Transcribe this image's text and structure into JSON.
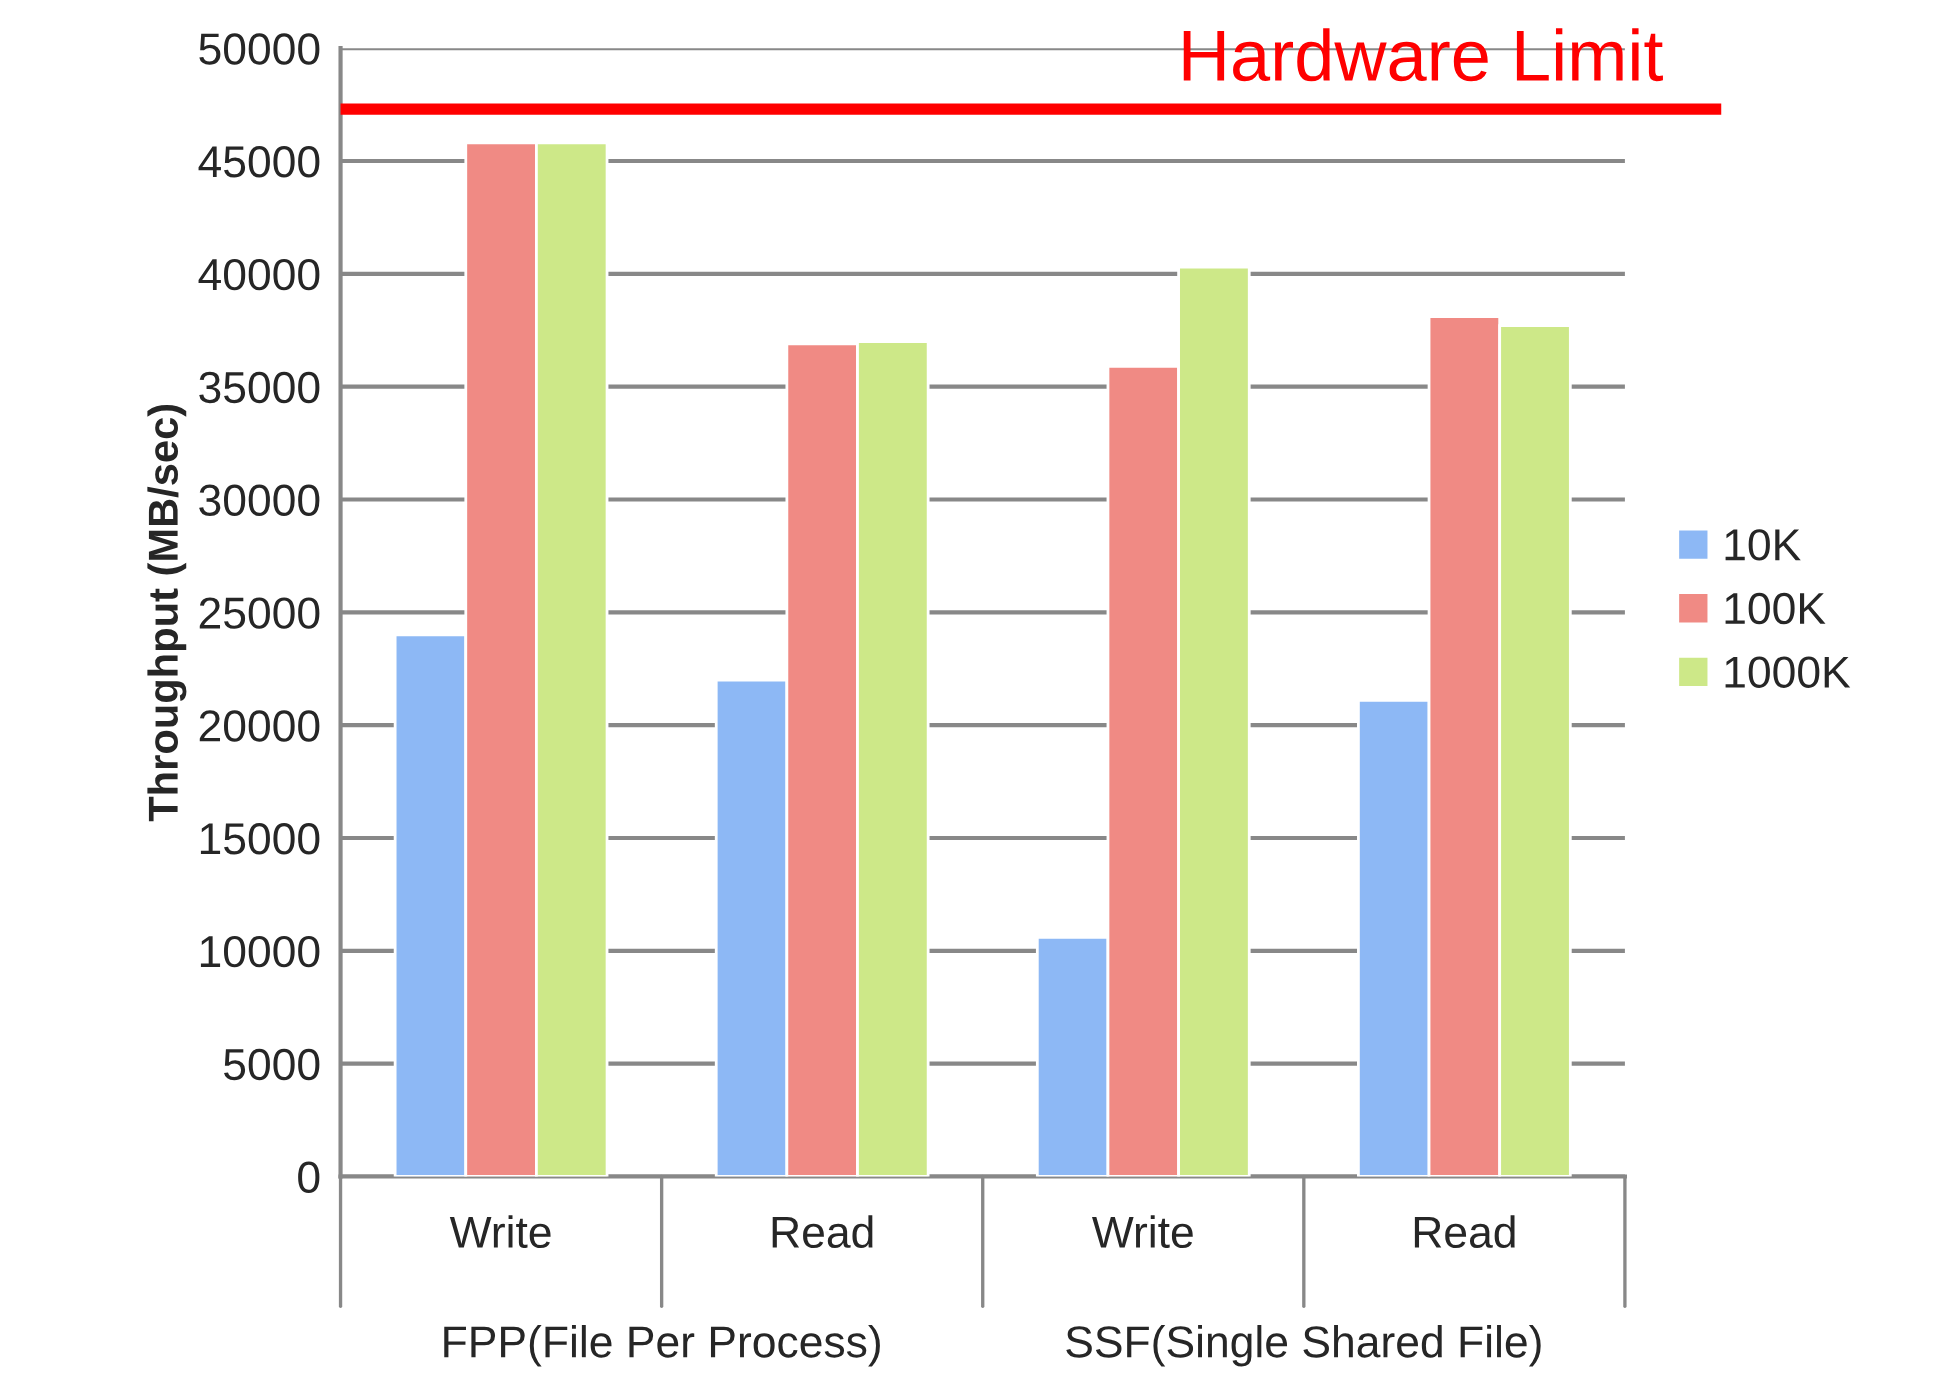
{
  "chart_data": {
    "type": "bar",
    "ylabel": "Throughput (MB/sec)",
    "categories": [
      "Write",
      "Read",
      "Write",
      "Read"
    ],
    "series": [
      {
        "name": "10K",
        "color": "#8db8f5",
        "values": [
          24000,
          22000,
          10600,
          21100
        ]
      },
      {
        "name": "100K",
        "color": "#f08a84",
        "values": [
          45800,
          36900,
          35900,
          38100
        ]
      },
      {
        "name": "1000K",
        "color": "#cde888",
        "values": [
          45800,
          37000,
          40300,
          37700
        ]
      }
    ],
    "ylim": [
      0,
      50000
    ],
    "yticks": [
      0,
      5000,
      10000,
      15000,
      20000,
      25000,
      30000,
      35000,
      40000,
      45000,
      50000
    ],
    "grid": "y",
    "legend": "right",
    "ref_lines": [
      {
        "axis": "y",
        "value": 47300,
        "label": "Hardware Limit",
        "color": "#ff0000",
        "line_style": "solid"
      }
    ],
    "annotations": [
      "FPP(File Per Process)",
      "SSF(Single Shared File)"
    ]
  }
}
